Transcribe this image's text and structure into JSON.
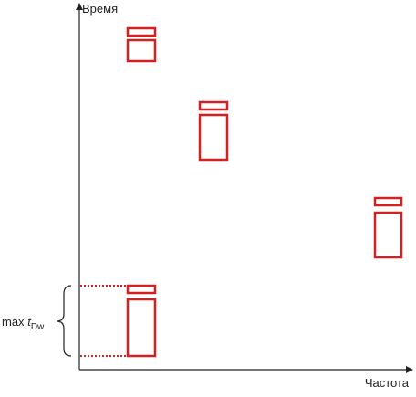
{
  "axes": {
    "y_label": "Время",
    "x_label": "Частота"
  },
  "annotation": {
    "prefix": "max",
    "symbol": "t",
    "subscript": "Dw"
  }
}
